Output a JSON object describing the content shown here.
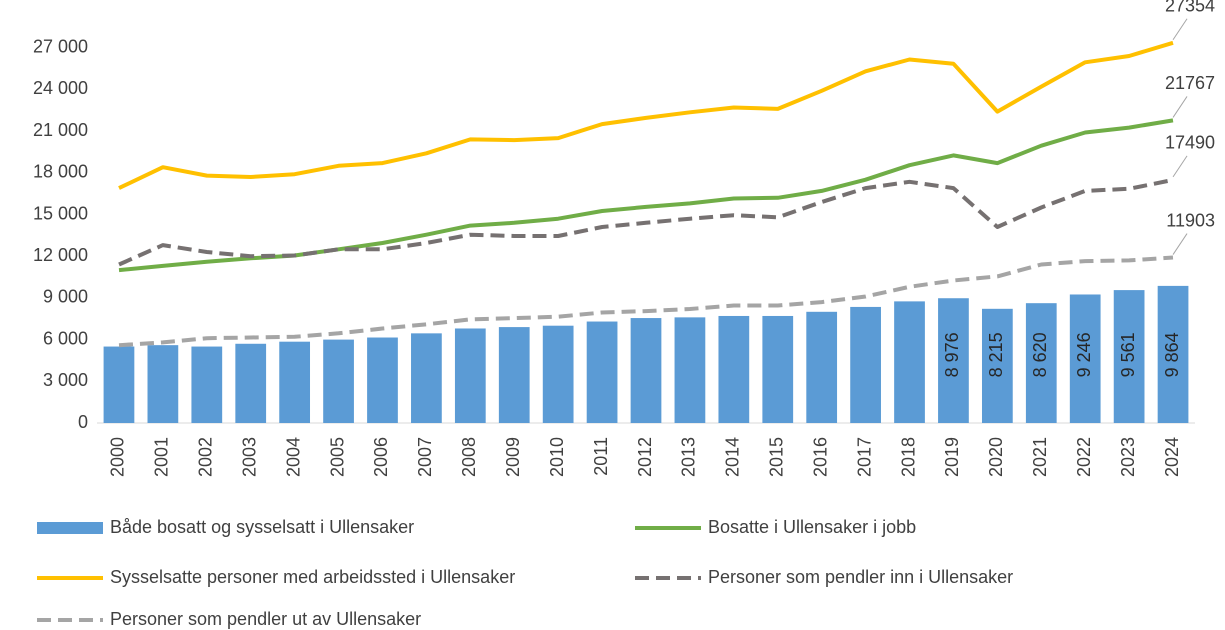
{
  "chart_data": {
    "type": "bar-line",
    "categories": [
      "2000",
      "2001",
      "2002",
      "2003",
      "2004",
      "2005",
      "2006",
      "2007",
      "2008",
      "2009",
      "2010",
      "2011",
      "2012",
      "2013",
      "2014",
      "2015",
      "2016",
      "2017",
      "2018",
      "2019",
      "2020",
      "2021",
      "2022",
      "2023",
      "2024"
    ],
    "ylim": [
      0,
      30000
    ],
    "yticks": [
      {
        "value": 0,
        "label": "0"
      },
      {
        "value": 3000,
        "label": "3 000"
      },
      {
        "value": 6000,
        "label": "6 000"
      },
      {
        "value": 9000,
        "label": "9 000"
      },
      {
        "value": 12000,
        "label": "12 000"
      },
      {
        "value": 15000,
        "label": "15 000"
      },
      {
        "value": 18000,
        "label": "18 000"
      },
      {
        "value": 21000,
        "label": "21 000"
      },
      {
        "value": 24000,
        "label": "24 000"
      },
      {
        "value": 27000,
        "label": "27 000"
      }
    ],
    "series": [
      {
        "name": "Både bosatt og sysselsatt i Ullensaker",
        "kind": "bar",
        "color": "#5b9bd5",
        "values": [
          5500,
          5600,
          5500,
          5700,
          5850,
          6000,
          6150,
          6450,
          6800,
          6900,
          7000,
          7300,
          7550,
          7600,
          7700,
          7700,
          8000,
          8350,
          8750,
          8976,
          8215,
          8620,
          9246,
          9561,
          9864
        ],
        "value_labels": [
          null,
          null,
          null,
          null,
          null,
          null,
          null,
          null,
          null,
          null,
          null,
          null,
          null,
          null,
          null,
          null,
          null,
          null,
          null,
          "8 976",
          "8 215",
          "8 620",
          "9 246",
          "9 561",
          "9 864"
        ]
      },
      {
        "name": "Bosatte i Ullensaker i jobb",
        "kind": "line",
        "dash": "solid",
        "color": "#70ad47",
        "end_label": true,
        "values": [
          11000,
          11300,
          11600,
          11850,
          12050,
          12500,
          12950,
          13550,
          14200,
          14400,
          14700,
          15250,
          15550,
          15800,
          16150,
          16200,
          16700,
          17500,
          18550,
          19250,
          18700,
          19950,
          20900,
          21250,
          21767
        ]
      },
      {
        "name": "Sysselsatte personer med arbeidssted i Ullensaker",
        "kind": "line",
        "dash": "solid",
        "color": "#ffc000",
        "end_label": true,
        "values": [
          16900,
          18400,
          17800,
          17700,
          17900,
          18500,
          18700,
          19400,
          20400,
          20350,
          20500,
          21500,
          21950,
          22350,
          22700,
          22600,
          23900,
          25300,
          26150,
          25850,
          22400,
          24200,
          25950,
          26400,
          27354
        ]
      },
      {
        "name": "Personer som pendler inn i Ullensaker",
        "kind": "line",
        "dash": "dashed",
        "color": "#767171",
        "end_label": true,
        "values": [
          11400,
          12800,
          12300,
          12000,
          12050,
          12500,
          12500,
          12950,
          13550,
          13450,
          13450,
          14100,
          14400,
          14700,
          14950,
          14800,
          15900,
          16900,
          17350,
          16900,
          14100,
          15500,
          16700,
          16850,
          17490
        ]
      },
      {
        "name": "Personer som pendler ut av Ullensaker",
        "kind": "line",
        "dash": "dashed",
        "color": "#a5a5a5",
        "end_label": true,
        "values": [
          5600,
          5800,
          6100,
          6150,
          6200,
          6450,
          6800,
          7100,
          7450,
          7550,
          7650,
          7950,
          8050,
          8200,
          8450,
          8450,
          8700,
          9100,
          9800,
          10250,
          10550,
          11400,
          11650,
          11700,
          11903
        ]
      }
    ]
  }
}
